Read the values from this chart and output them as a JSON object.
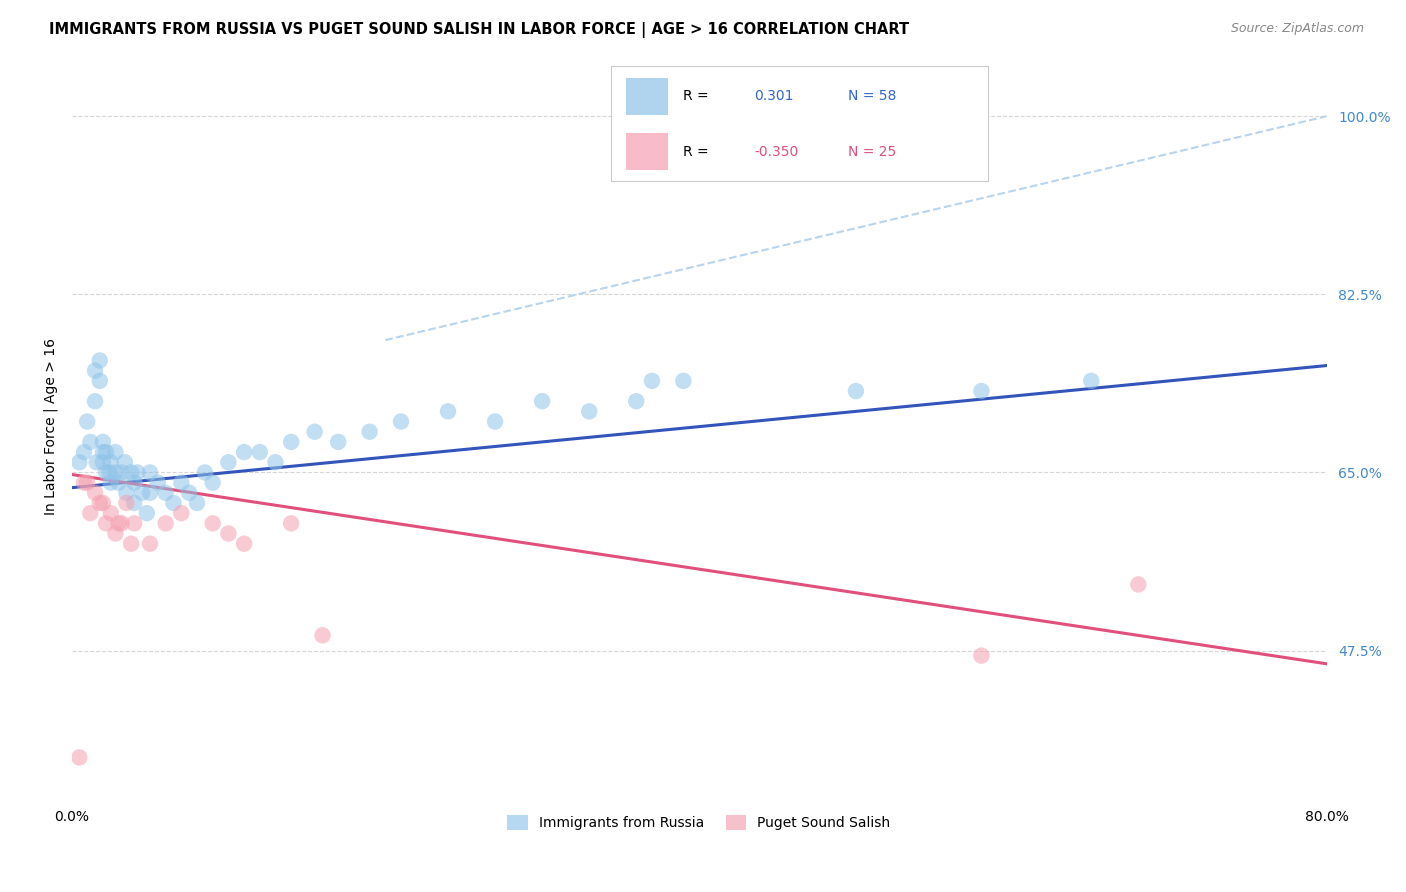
{
  "title": "IMMIGRANTS FROM RUSSIA VS PUGET SOUND SALISH IN LABOR FORCE | AGE > 16 CORRELATION CHART",
  "source": "Source: ZipAtlas.com",
  "ylabel": "In Labor Force | Age > 16",
  "xlim": [
    0.0,
    0.8
  ],
  "ylim": [
    0.33,
    1.06
  ],
  "russia_x": [
    0.005,
    0.008,
    0.01,
    0.012,
    0.015,
    0.015,
    0.016,
    0.018,
    0.018,
    0.02,
    0.02,
    0.02,
    0.022,
    0.022,
    0.024,
    0.025,
    0.025,
    0.028,
    0.028,
    0.03,
    0.032,
    0.034,
    0.035,
    0.038,
    0.04,
    0.04,
    0.042,
    0.045,
    0.048,
    0.05,
    0.05,
    0.055,
    0.06,
    0.065,
    0.07,
    0.075,
    0.08,
    0.085,
    0.09,
    0.1,
    0.11,
    0.12,
    0.13,
    0.14,
    0.155,
    0.17,
    0.19,
    0.21,
    0.24,
    0.27,
    0.3,
    0.33,
    0.36,
    0.37,
    0.39,
    0.5,
    0.58,
    0.65
  ],
  "russia_y": [
    0.66,
    0.67,
    0.7,
    0.68,
    0.72,
    0.75,
    0.66,
    0.74,
    0.76,
    0.66,
    0.67,
    0.68,
    0.65,
    0.67,
    0.65,
    0.64,
    0.66,
    0.65,
    0.67,
    0.64,
    0.65,
    0.66,
    0.63,
    0.65,
    0.62,
    0.64,
    0.65,
    0.63,
    0.61,
    0.63,
    0.65,
    0.64,
    0.63,
    0.62,
    0.64,
    0.63,
    0.62,
    0.65,
    0.64,
    0.66,
    0.67,
    0.67,
    0.66,
    0.68,
    0.69,
    0.68,
    0.69,
    0.7,
    0.71,
    0.7,
    0.72,
    0.71,
    0.72,
    0.74,
    0.74,
    0.73,
    0.73,
    0.74
  ],
  "salish_x": [
    0.005,
    0.008,
    0.01,
    0.012,
    0.015,
    0.018,
    0.02,
    0.022,
    0.025,
    0.028,
    0.03,
    0.032,
    0.035,
    0.038,
    0.04,
    0.05,
    0.06,
    0.07,
    0.09,
    0.1,
    0.11,
    0.14,
    0.16,
    0.58,
    0.68
  ],
  "salish_y": [
    0.37,
    0.64,
    0.64,
    0.61,
    0.63,
    0.62,
    0.62,
    0.6,
    0.61,
    0.59,
    0.6,
    0.6,
    0.62,
    0.58,
    0.6,
    0.58,
    0.6,
    0.61,
    0.6,
    0.59,
    0.58,
    0.6,
    0.49,
    0.47,
    0.54
  ],
  "blue_line_x": [
    0.0,
    0.8
  ],
  "blue_line_y": [
    0.635,
    0.755
  ],
  "pink_line_x": [
    0.0,
    0.8
  ],
  "pink_line_y": [
    0.648,
    0.462
  ],
  "dash_line_x": [
    0.2,
    0.8
  ],
  "dash_line_y": [
    0.78,
    1.0
  ],
  "dot_color_russia": "#8fc3e8",
  "dot_color_salish": "#f4a0b0",
  "line_color_russia": "#3355bb",
  "line_color_salish": "#e0507a",
  "dash_color": "#b8d4ee",
  "background_color": "#ffffff",
  "grid_color": "#cccccc",
  "yticks": [
    0.475,
    0.65,
    0.825,
    1.0
  ],
  "ytick_labels": [
    "47.5%",
    "65.0%",
    "82.5%",
    "100.0%"
  ]
}
